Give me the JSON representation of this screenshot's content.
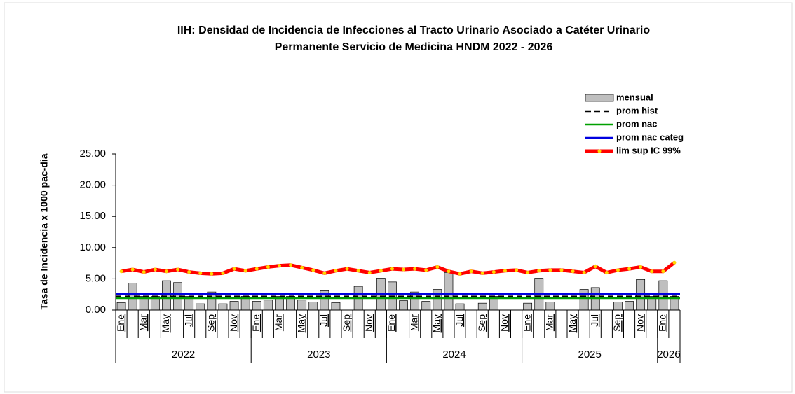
{
  "chart_data": {
    "type": "bar",
    "title": [
      "IIH: Densidad de Incidencia de Infecciones al Tracto Urinario Asociado a Catéter Urinario",
      "Permanente Servicio de Medicina HNDM  2022 - 2026"
    ],
    "y_label": "Tasa de Incidencia x 1000 pac-dia",
    "categories": [
      "Ene",
      null,
      "Mar",
      null,
      "May",
      null,
      "Jul",
      null,
      "Sep",
      null,
      "Nov",
      null,
      "Ene",
      null,
      "Mar",
      null,
      "May",
      null,
      "Jul",
      null,
      "Sep",
      null,
      "Nov",
      null,
      "Ene",
      null,
      "Mar",
      null,
      "May",
      null,
      "Jul",
      null,
      "Sep",
      null,
      "Nov",
      null,
      "Ene",
      null,
      "Mar",
      null,
      "May",
      null,
      "Jul",
      null,
      "Sep",
      null,
      "Nov",
      null,
      "Ene",
      null
    ],
    "years": [
      "2022",
      "2023",
      "2024",
      "2025",
      "2026"
    ],
    "ylim": [
      0,
      25
    ],
    "yticks": [
      {
        "value": 0,
        "label": "0.00"
      },
      {
        "value": 5,
        "label": "5.00"
      },
      {
        "value": 10,
        "label": "10.00"
      },
      {
        "value": 15,
        "label": "15.00"
      },
      {
        "value": 20,
        "label": "20.00"
      },
      {
        "value": 25,
        "label": "25.00"
      }
    ],
    "series": [
      {
        "name": "mensual",
        "color": "#bfbfbf",
        "values": [
          1.2,
          4.3,
          2.2,
          2.2,
          4.7,
          4.4,
          2.2,
          1.0,
          2.9,
          1.0,
          1.4,
          2.2,
          1.4,
          1.6,
          2.2,
          2.2,
          1.6,
          1.3,
          3.1,
          1.2,
          0,
          3.8,
          0,
          5.1,
          4.5,
          1.5,
          2.9,
          1.4,
          3.3,
          6.0,
          1.0,
          0,
          1.1,
          2.2,
          0,
          0,
          1.1,
          5.1,
          1.3,
          0,
          0,
          3.3,
          3.6,
          0,
          1.3,
          1.4,
          4.9,
          2.2,
          4.7,
          2.2
        ]
      },
      {
        "name": "lim sup IC 99%",
        "color": "#ff0000",
        "marker_color": "#ffd700",
        "values": [
          6.2,
          6.5,
          6.1,
          6.5,
          6.2,
          6.5,
          6.1,
          5.9,
          5.8,
          5.9,
          6.6,
          6.3,
          6.6,
          6.9,
          7.1,
          7.2,
          6.8,
          6.4,
          5.9,
          6.3,
          6.6,
          6.3,
          6.0,
          6.3,
          6.6,
          6.5,
          6.6,
          6.4,
          6.9,
          6.2,
          5.8,
          6.2,
          5.9,
          6.1,
          6.3,
          6.4,
          6.0,
          6.3,
          6.4,
          6.4,
          6.2,
          6.0,
          7.0,
          6.0,
          6.4,
          6.6,
          6.9,
          6.2,
          6.2,
          7.6
        ]
      }
    ],
    "reference_lines": [
      {
        "name": "prom hist",
        "color": "#000000",
        "value": 2.2,
        "dashed": true
      },
      {
        "name": "prom nac",
        "color": "#00a000",
        "value": 1.9,
        "dashed": false
      },
      {
        "name": "prom nac categ",
        "color": "#0000e0",
        "value": 2.6,
        "dashed": false
      }
    ]
  }
}
